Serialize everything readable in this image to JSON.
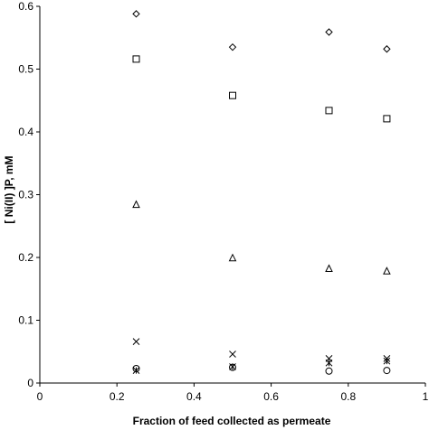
{
  "chart_data": {
    "type": "scatter",
    "title": "",
    "xlabel": "Fraction of feed collected as permeate",
    "ylabel": "[ Ni(II) ]P, mM",
    "xlim": [
      0,
      1
    ],
    "ylim": [
      0,
      0.6
    ],
    "x_ticks": [
      "0",
      "0.2",
      "0.4",
      "0.6",
      "0.8",
      "1"
    ],
    "y_ticks": [
      "0",
      "0.1",
      "0.2",
      "0.3",
      "0.4",
      "0.5",
      "0.6"
    ],
    "grid": false,
    "legend": "none",
    "series": [
      {
        "marker": "diamond",
        "x": [
          0.25,
          0.5,
          0.75,
          0.9
        ],
        "y": [
          0.588,
          0.535,
          0.559,
          0.532
        ]
      },
      {
        "marker": "square",
        "x": [
          0.25,
          0.5,
          0.75,
          0.9
        ],
        "y": [
          0.516,
          0.458,
          0.434,
          0.421
        ]
      },
      {
        "marker": "triangle",
        "x": [
          0.25,
          0.5,
          0.75,
          0.9
        ],
        "y": [
          0.284,
          0.199,
          0.182,
          0.178
        ]
      },
      {
        "marker": "x",
        "x": [
          0.25,
          0.5,
          0.75,
          0.9
        ],
        "y": [
          0.066,
          0.046,
          0.039,
          0.039
        ]
      },
      {
        "marker": "star",
        "x": [
          0.25,
          0.5,
          0.75,
          0.9
        ],
        "y": [
          0.02,
          0.026,
          0.032,
          0.035
        ]
      },
      {
        "marker": "circle",
        "x": [
          0.25,
          0.5,
          0.75,
          0.9
        ],
        "y": [
          0.023,
          0.025,
          0.019,
          0.02
        ]
      }
    ]
  }
}
